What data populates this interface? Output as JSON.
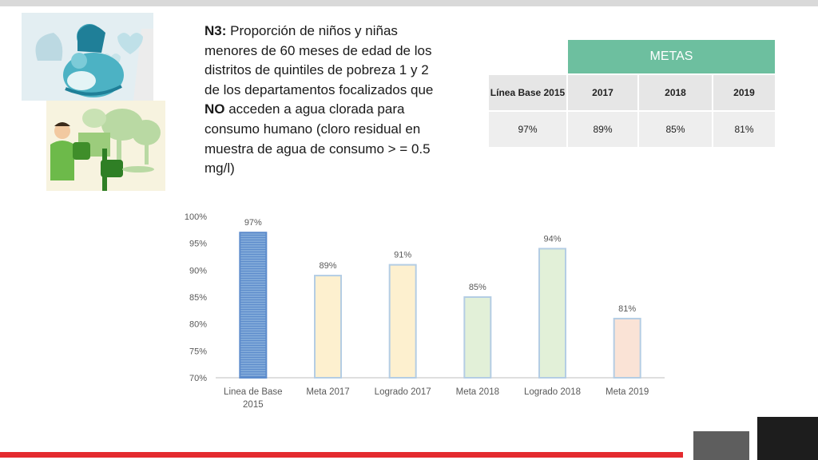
{
  "title": {
    "prefix_bold": "N3:",
    "part1": " Proporción de niños y niñas menores de 60 meses de edad de los distritos de quintiles de pobreza 1 y 2 de los departamentos focalizados que ",
    "no_bold": "NO",
    "part2": " acceden a agua clorada para consumo humano (cloro residual en muestra de agua de consumo > = 0.5 mg/l)"
  },
  "metas_table": {
    "header": "METAS",
    "baseline_label": "Línea Base 2015",
    "years": [
      "2017",
      "2018",
      "2019"
    ],
    "baseline_value": "97%",
    "values": [
      "89%",
      "85%",
      "81%"
    ]
  },
  "colors": {
    "metas_header": "#6dbf9f",
    "bottom_bar": "#e42b2f"
  },
  "chart_data": {
    "type": "bar",
    "categories": [
      "Linea de Base 2015",
      "Meta 2017",
      "Logrado 2017",
      "Meta 2018",
      "Logrado 2018",
      "Meta 2019"
    ],
    "values": [
      97,
      89,
      91,
      85,
      94,
      81
    ],
    "value_labels": [
      "97%",
      "89%",
      "91%",
      "85%",
      "94%",
      "81%"
    ],
    "bar_colors": [
      "#7fa8d8",
      "#fdf0cf",
      "#fdf0cf",
      "#e2f0d8",
      "#e2f0d8",
      "#fae3d6"
    ],
    "ylim": [
      70,
      100
    ],
    "yticks": [
      "70%",
      "75%",
      "80%",
      "85%",
      "90%",
      "95%",
      "100%"
    ],
    "grid": false
  }
}
